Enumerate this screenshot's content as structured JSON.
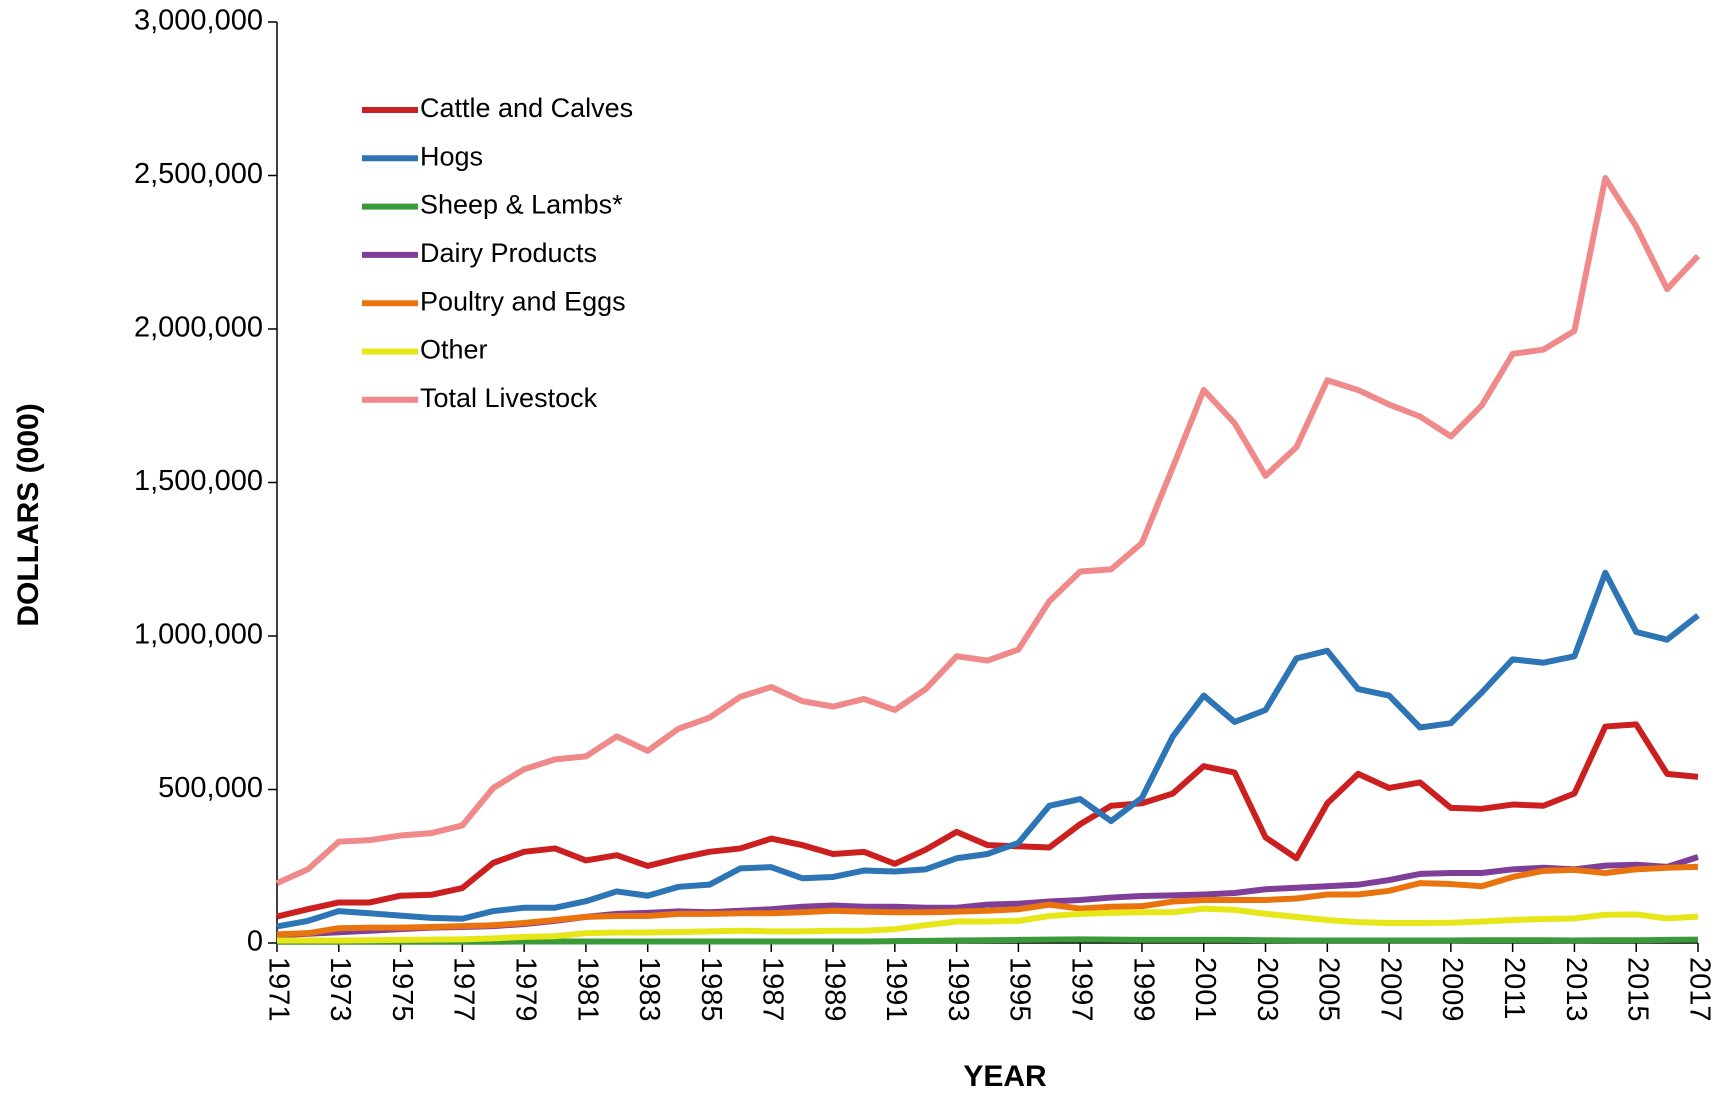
{
  "chart_data": {
    "type": "line",
    "x_label": "YEAR",
    "y_label": "DOLLARS (000)",
    "x": [
      1971,
      1972,
      1973,
      1974,
      1975,
      1976,
      1977,
      1978,
      1979,
      1980,
      1981,
      1982,
      1983,
      1984,
      1985,
      1986,
      1987,
      1988,
      1989,
      1990,
      1991,
      1992,
      1993,
      1994,
      1995,
      1996,
      1997,
      1998,
      1999,
      2000,
      2001,
      2002,
      2003,
      2004,
      2005,
      2006,
      2007,
      2008,
      2009,
      2010,
      2011,
      2012,
      2013,
      2014,
      2015,
      2016,
      2017
    ],
    "xlim": [
      1971,
      2017
    ],
    "xticks": [
      1971,
      1973,
      1975,
      1977,
      1979,
      1981,
      1983,
      1985,
      1987,
      1989,
      1991,
      1993,
      1995,
      1997,
      1999,
      2001,
      2003,
      2005,
      2007,
      2009,
      2011,
      2013,
      2015,
      2017
    ],
    "ylim": [
      0,
      3000000
    ],
    "yticks": [
      0,
      {
        "value": 500000,
        "label": "500,000"
      },
      {
        "value": 1000000,
        "label": "1,000,000"
      },
      {
        "value": 1500000,
        "label": "1,500,000"
      },
      {
        "value": 2000000,
        "label": "2,000,000"
      },
      {
        "value": 2500000,
        "label": "2,500,000"
      },
      {
        "value": 3000000,
        "label": "3,000,000"
      }
    ],
    "legend": "upper left",
    "series": [
      {
        "name": "Cattle and Calves",
        "color": "#cc1f1f",
        "values": [
          86000,
          110000,
          132000,
          132000,
          154000,
          157000,
          179000,
          261000,
          297000,
          308000,
          269000,
          286000,
          251000,
          276000,
          297000,
          308000,
          340000,
          319000,
          290000,
          297000,
          258000,
          304000,
          362000,
          319000,
          315000,
          311000,
          387000,
          447000,
          455000,
          487000,
          576000,
          555000,
          344000,
          276000,
          455000,
          551000,
          505000,
          523000,
          440000,
          437000,
          451000,
          447000,
          487000,
          705000,
          712000,
          551000,
          541000
        ]
      },
      {
        "name": "Hogs",
        "color": "#2e75b6",
        "values": [
          54000,
          72000,
          104000,
          97000,
          89000,
          82000,
          79000,
          104000,
          115000,
          115000,
          136000,
          168000,
          154000,
          183000,
          190000,
          243000,
          247000,
          211000,
          215000,
          236000,
          233000,
          240000,
          276000,
          290000,
          326000,
          447000,
          469000,
          397000,
          473000,
          673000,
          806000,
          720000,
          759000,
          927000,
          952000,
          827000,
          806000,
          702000,
          716000,
          816000,
          924000,
          913000,
          934000,
          1206000,
          1013000,
          988000,
          1067000
        ]
      },
      {
        "name": "Sheep & Lambs*",
        "color": "#3a9a3a",
        "values": [
          4000,
          4000,
          4000,
          4000,
          4000,
          4000,
          4000,
          4000,
          5000,
          5000,
          5000,
          5000,
          5000,
          5000,
          5000,
          5000,
          5000,
          5000,
          5000,
          5000,
          6000,
          7000,
          8000,
          9000,
          10000,
          11000,
          12000,
          11000,
          10000,
          10000,
          10000,
          10000,
          9000,
          8000,
          8000,
          8000,
          8000,
          8000,
          8000,
          9000,
          9000,
          9000,
          8000,
          9000,
          9000,
          10000,
          11000
        ]
      },
      {
        "name": "Dairy Products",
        "color": "#7f3f98",
        "values": [
          25000,
          30000,
          35000,
          40000,
          45000,
          50000,
          52000,
          55000,
          62000,
          72000,
          85000,
          95000,
          98000,
          103000,
          100000,
          105000,
          110000,
          118000,
          122000,
          118000,
          118000,
          115000,
          115000,
          125000,
          128000,
          135000,
          140000,
          148000,
          153000,
          155000,
          158000,
          163000,
          175000,
          180000,
          185000,
          190000,
          205000,
          225000,
          228000,
          228000,
          240000,
          245000,
          240000,
          252000,
          255000,
          248000,
          280000
        ]
      },
      {
        "name": "Poultry and Eggs",
        "color": "#e8730f",
        "values": [
          28000,
          32000,
          48000,
          50000,
          50000,
          52000,
          55000,
          58000,
          65000,
          75000,
          85000,
          88000,
          88000,
          95000,
          95000,
          97000,
          97000,
          100000,
          105000,
          102000,
          100000,
          100000,
          102000,
          105000,
          110000,
          125000,
          112000,
          118000,
          120000,
          135000,
          140000,
          140000,
          140000,
          145000,
          158000,
          158000,
          170000,
          195000,
          192000,
          185000,
          215000,
          235000,
          238000,
          228000,
          240000,
          245000,
          248000
        ]
      },
      {
        "name": "Other",
        "color": "#e6e619",
        "values": [
          8000,
          8000,
          8000,
          9000,
          10000,
          11000,
          12000,
          15000,
          20000,
          22000,
          32000,
          34000,
          34000,
          36000,
          38000,
          40000,
          38000,
          38000,
          40000,
          40000,
          45000,
          58000,
          70000,
          70000,
          72000,
          88000,
          95000,
          98000,
          100000,
          100000,
          112000,
          108000,
          95000,
          85000,
          75000,
          68000,
          65000,
          65000,
          66000,
          70000,
          75000,
          78000,
          80000,
          92000,
          93000,
          80000,
          86000
        ]
      },
      {
        "name": "Total Livestock",
        "color": "#f08a8a",
        "values": [
          195000,
          240000,
          330000,
          335000,
          350000,
          358000,
          383000,
          505000,
          566000,
          598000,
          608000,
          673000,
          626000,
          698000,
          734000,
          802000,
          834000,
          788000,
          770000,
          795000,
          759000,
          827000,
          934000,
          920000,
          956000,
          1113000,
          1210000,
          1217000,
          1303000,
          1550000,
          1801000,
          1693000,
          1522000,
          1615000,
          1833000,
          1801000,
          1754000,
          1715000,
          1650000,
          1751000,
          1919000,
          1933000,
          1994000,
          2492000,
          2334000,
          2130000,
          2238000
        ]
      }
    ]
  }
}
